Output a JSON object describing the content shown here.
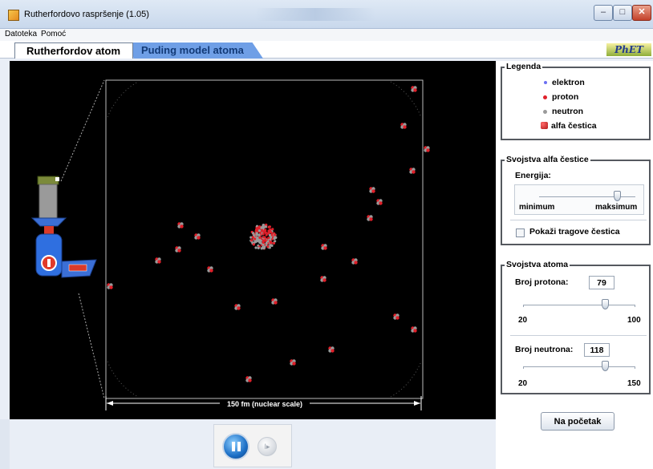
{
  "window": {
    "title": "Rutherfordovo raspršenje (1.05)",
    "min_glyph": "–",
    "max_glyph": "□",
    "close_glyph": "✕"
  },
  "menu": [
    {
      "label": "Datoteka"
    },
    {
      "label": "Pomoć"
    }
  ],
  "tabs": [
    {
      "label": "Rutherfordov atom",
      "active": true
    },
    {
      "label": "Puding model atoma",
      "active": false
    }
  ],
  "logo_text": "PhET",
  "simulation": {
    "scale_label": "150 fm (nuclear scale)",
    "gun_icon": "alpha-particle-gun-icon",
    "alpha_particle_count": 23
  },
  "legend": {
    "title": "Legenda",
    "items": [
      {
        "label": "elektron",
        "color": "#6b6ff2",
        "icon": "electron-dot-icon"
      },
      {
        "label": "proton",
        "color": "#e0202a",
        "icon": "proton-dot-icon"
      },
      {
        "label": "neutron",
        "color": "#9a9a9a",
        "icon": "neutron-dot-icon"
      },
      {
        "label": "alfa čestica",
        "color": "#e0202a",
        "icon": "alpha-particle-icon"
      }
    ]
  },
  "alpha_properties": {
    "title": "Svojstva alfa čestice",
    "energy_label": "Energija:",
    "energy_min_label": "minimum",
    "energy_max_label": "maksimum",
    "energy_level": 0.82,
    "show_tracks_label": "Pokaži tragove čestica",
    "show_tracks_checked": false
  },
  "atom_properties": {
    "title": "Svojstva atoma",
    "protons_label": "Broj protona:",
    "protons_value": "79",
    "protons_min": "20",
    "protons_max": "100",
    "neutrons_label": "Broj neutrona:",
    "neutrons_value": "118",
    "neutrons_min": "20",
    "neutrons_max": "150"
  },
  "reset_label": "Na početak",
  "controls": {
    "pause_icon": "pause-icon",
    "step_glyph": "I▸"
  }
}
